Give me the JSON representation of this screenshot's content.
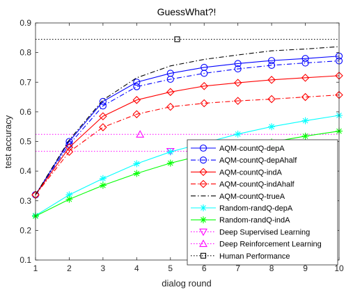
{
  "chart_data": {
    "type": "line",
    "title": "GuessWhat?!",
    "xlabel": "dialog round",
    "ylabel": "test accuracy",
    "xlim": [
      1,
      10
    ],
    "ylim": [
      0.1,
      0.9
    ],
    "xticks": [
      "1",
      "2",
      "3",
      "4",
      "5",
      "6",
      "7",
      "8",
      "9",
      "10"
    ],
    "yticks": [
      "0.1",
      "0.2",
      "0.3",
      "0.4",
      "0.5",
      "0.6",
      "0.7",
      "0.8",
      "0.9"
    ],
    "grid": false,
    "legend_position": "bottom-right",
    "x": [
      1,
      2,
      3,
      4,
      5,
      6,
      7,
      8,
      9,
      10
    ],
    "series": [
      {
        "name": "AQM-countQ-depA",
        "color": "#0000ff",
        "line": "solid",
        "marker": "circle",
        "values": [
          0.32,
          0.5,
          0.635,
          0.7,
          0.73,
          0.75,
          0.763,
          0.773,
          0.78,
          0.788
        ]
      },
      {
        "name": "AQM-countQ-depAhalf",
        "color": "#0000ff",
        "line": "dashdot",
        "marker": "circle",
        "values": [
          0.32,
          0.49,
          0.62,
          0.685,
          0.71,
          0.73,
          0.745,
          0.757,
          0.765,
          0.772
        ]
      },
      {
        "name": "AQM-countQ-indA",
        "color": "#ff0000",
        "line": "solid",
        "marker": "diamond",
        "values": [
          0.32,
          0.48,
          0.585,
          0.64,
          0.667,
          0.687,
          0.698,
          0.708,
          0.715,
          0.722
        ]
      },
      {
        "name": "AQM-countQ-indAhalf",
        "color": "#ff0000",
        "line": "dashdot",
        "marker": "diamond",
        "values": [
          0.32,
          0.465,
          0.548,
          0.592,
          0.617,
          0.629,
          0.637,
          0.643,
          0.65,
          0.657
        ]
      },
      {
        "name": "AQM-countQ-trueA",
        "color": "#000000",
        "line": "dashdot",
        "marker": "none",
        "values": [
          0.32,
          0.505,
          0.64,
          0.715,
          0.755,
          0.777,
          0.792,
          0.806,
          0.812,
          0.82
        ]
      },
      {
        "name": "Random-randQ-depA",
        "color": "#00ffff",
        "line": "solid",
        "marker": "star",
        "values": [
          0.25,
          0.32,
          0.375,
          0.425,
          0.465,
          0.495,
          0.525,
          0.55,
          0.57,
          0.588
        ]
      },
      {
        "name": "Random-randQ-indA",
        "color": "#00ff00",
        "line": "solid",
        "marker": "star",
        "values": [
          0.248,
          0.305,
          0.352,
          0.392,
          0.427,
          0.455,
          0.478,
          0.498,
          0.518,
          0.535
        ]
      }
    ],
    "reference_lines": [
      {
        "name": "Deep Supervised Learning",
        "color": "#ff00ff",
        "line": "dotted",
        "marker": "triangle-down",
        "value": 0.467,
        "marker_x": 5
      },
      {
        "name": "Deep Reinforcement Learning",
        "color": "#ff00ff",
        "line": "dotted",
        "marker": "triangle-up",
        "value": 0.524,
        "marker_x": 4.1
      },
      {
        "name": "Human Performance",
        "color": "#000000",
        "line": "dotted",
        "marker": "square",
        "value": 0.845,
        "marker_x": 5.2
      }
    ]
  }
}
